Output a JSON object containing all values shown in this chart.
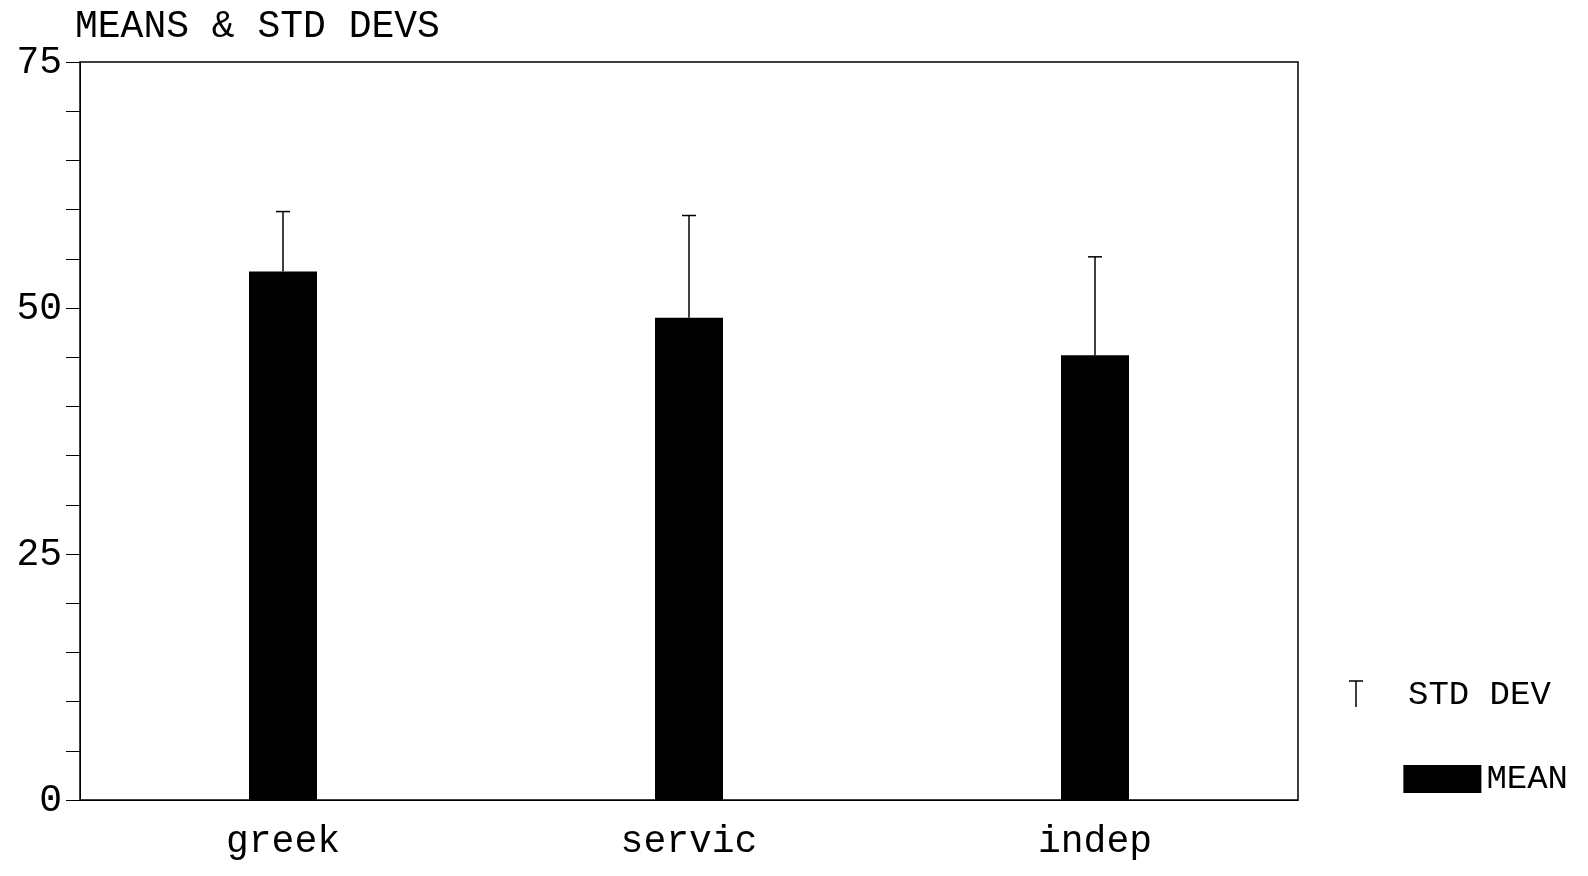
{
  "chart_data": {
    "type": "bar",
    "title": "MEANS & STD DEVS",
    "categories": [
      "greek",
      "servic",
      "indep"
    ],
    "series": [
      {
        "name": "MEAN",
        "color": "#000000",
        "values": [
          53.7,
          49,
          45.2
        ],
        "errors": [
          [
            53.7,
            59.8
          ],
          [
            49,
            59.4
          ],
          [
            45.2,
            55.2
          ]
        ]
      }
    ],
    "annotations": [
      "STD DEV"
    ],
    "ylim": [
      0,
      75
    ],
    "yticks": [
      0,
      {
        "value": 5,
        "label": null
      },
      {
        "value": 10,
        "label": null
      },
      {
        "value": 15,
        "label": null
      },
      {
        "value": 20,
        "label": null
      },
      25,
      {
        "value": 30,
        "label": null
      },
      {
        "value": 35,
        "label": null
      },
      {
        "value": 40,
        "label": null
      },
      {
        "value": 45,
        "label": null
      },
      50,
      {
        "value": 55,
        "label": null
      },
      {
        "value": 60,
        "label": null
      },
      {
        "value": 65,
        "label": null
      },
      {
        "value": 70,
        "label": null
      },
      75
    ],
    "grid": false,
    "legend": "bottom right"
  }
}
